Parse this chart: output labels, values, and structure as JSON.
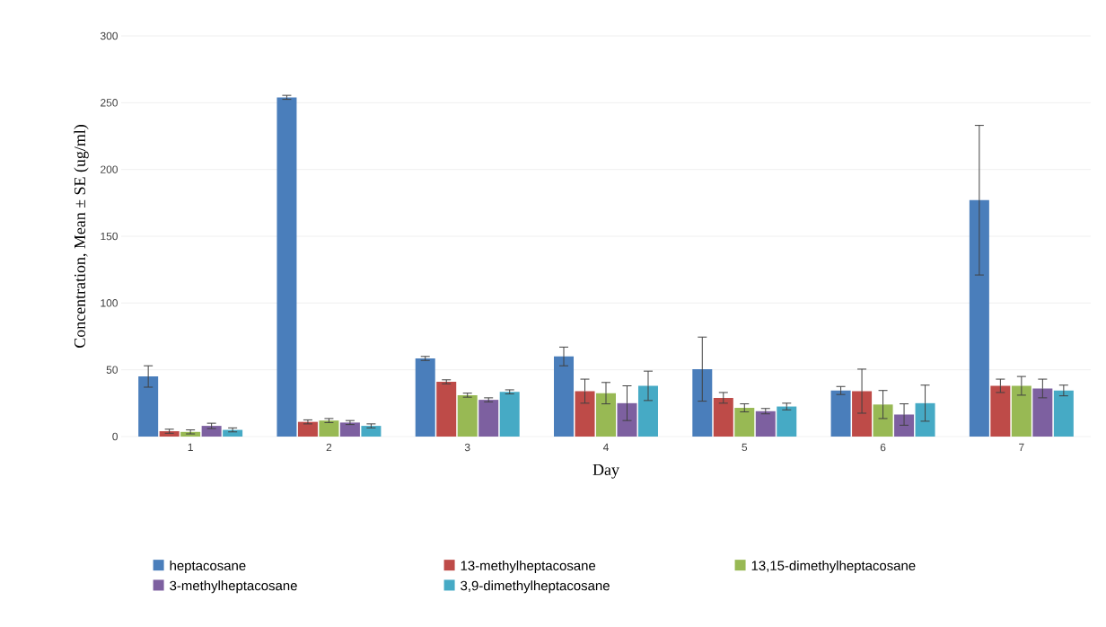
{
  "chart_data": {
    "type": "bar",
    "xlabel": "Day",
    "ylabel": "Concentration, Mean ± SE  (ug/ml)",
    "categories": [
      "1",
      "2",
      "3",
      "4",
      "5",
      "6",
      "7"
    ],
    "ylim": [
      0,
      300
    ],
    "yticks": [
      0,
      50,
      100,
      150,
      200,
      250,
      300
    ],
    "grid": "y",
    "legend": "bottom",
    "series": [
      {
        "name": "heptacosane",
        "color": "#4a7ebb",
        "values": [
          45,
          254,
          58.5,
          60,
          50.5,
          34.5,
          177
        ],
        "errors": [
          8,
          1.5,
          1.5,
          7,
          24,
          3,
          56
        ]
      },
      {
        "name": "13-methylheptacosane",
        "color": "#be4b48",
        "values": [
          4,
          11,
          41,
          34,
          29,
          34,
          38
        ],
        "errors": [
          1.5,
          1.5,
          1.5,
          9,
          4,
          16.5,
          5
        ]
      },
      {
        "name": "13,15-dimethylheptacosane",
        "color": "#98b954",
        "values": [
          3.5,
          12,
          31,
          32.5,
          21.5,
          24,
          38
        ],
        "errors": [
          1.5,
          1.5,
          1.5,
          8,
          3,
          10.5,
          7
        ]
      },
      {
        "name": "3-methylheptacosane",
        "color": "#7d60a0",
        "values": [
          8,
          10.5,
          27.5,
          25,
          19,
          16.5,
          36
        ],
        "errors": [
          2,
          1.5,
          1.5,
          13,
          2,
          8,
          7
        ]
      },
      {
        "name": "3,9-dimethylheptacosane",
        "color": "#46aac5",
        "values": [
          5,
          8,
          33.5,
          38,
          22.5,
          25,
          34.5
        ],
        "errors": [
          1.5,
          1.5,
          1.5,
          11,
          2.5,
          13.5,
          4
        ]
      }
    ]
  }
}
